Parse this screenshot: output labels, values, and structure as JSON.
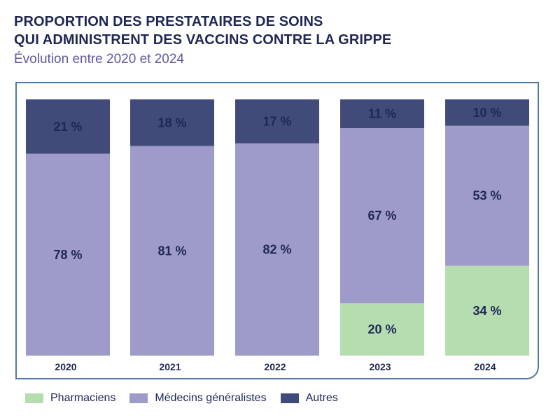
{
  "title_line1": "PROPORTION DES PRESTATAIRES DE SOINS",
  "title_line2": "QUI ADMINISTRENT DES VACCINS CONTRE LA GRIPPE",
  "subtitle": "Évolution entre 2020 et 2024",
  "colors": {
    "pharmaciens": "#b5ddb0",
    "medecins": "#9e9ac9",
    "autres": "#414b7a"
  },
  "legend": [
    {
      "key": "pharmaciens",
      "label": "Pharmaciens"
    },
    {
      "key": "medecins",
      "label": "Médecins généralistes"
    },
    {
      "key": "autres",
      "label": "Autres"
    }
  ],
  "chart_data": {
    "type": "bar",
    "stacked": true,
    "title": "PROPORTION DES PRESTATAIRES DE SOINS QUI ADMINISTRENT DES VACCINS CONTRE LA GRIPPE",
    "subtitle": "Évolution entre 2020 et 2024",
    "categories": [
      "2020",
      "2021",
      "2022",
      "2023",
      "2024"
    ],
    "series": [
      {
        "name": "Pharmaciens",
        "key": "pharmaciens",
        "values": [
          0,
          0,
          0,
          20,
          34
        ],
        "labels": [
          "",
          "",
          "",
          "20 %",
          "34 %"
        ]
      },
      {
        "name": "Médecins généralistes",
        "key": "medecins",
        "values": [
          78,
          81,
          82,
          67,
          53
        ],
        "labels": [
          "78 %",
          "81 %",
          "82 %",
          "67 %",
          "53 %"
        ]
      },
      {
        "name": "Autres",
        "key": "autres",
        "values": [
          21,
          18,
          17,
          11,
          10
        ],
        "labels": [
          "21 %",
          "18 %",
          "17 %",
          "11 %",
          "10 %"
        ]
      }
    ],
    "ylim": [
      0,
      100
    ],
    "xlabel": "",
    "ylabel": "",
    "legend_position": "bottom"
  }
}
